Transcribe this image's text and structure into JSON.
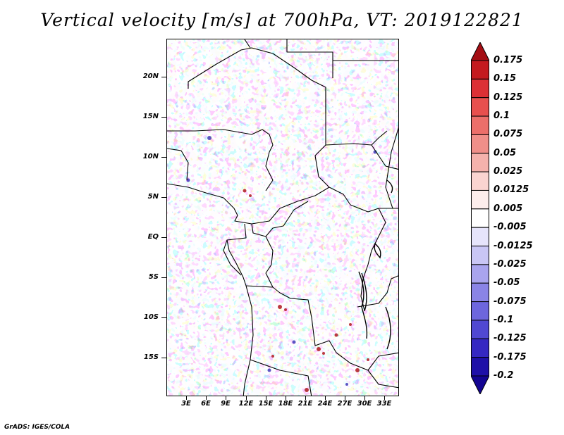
{
  "title": "Vertical velocity [m/s] at 700hPa, VT: 2019122821",
  "credit": "GrADS: IGES/COLA",
  "map": {
    "lat_labels": [
      "20N",
      "15N",
      "10N",
      "5N",
      "EQ",
      "5S",
      "10S",
      "15S"
    ],
    "lon_labels": [
      "3E",
      "6E",
      "9E",
      "12E",
      "15E",
      "18E",
      "21E",
      "24E",
      "27E",
      "30E",
      "33E"
    ]
  },
  "colorbar": {
    "levels": [
      "0.175",
      "0.15",
      "0.125",
      "0.1",
      "0.075",
      "0.05",
      "0.025",
      "0.0125",
      "0.005",
      "-0.005",
      "-0.0125",
      "-0.025",
      "-0.05",
      "-0.075",
      "-0.1",
      "-0.125",
      "-0.175",
      "-0.2"
    ],
    "colors": [
      "#a40e14",
      "#c41a1f",
      "#dc3035",
      "#e8504e",
      "#ec6f6a",
      "#f08f89",
      "#f5b2ac",
      "#fad4d0",
      "#fdeeec",
      "#ffffff",
      "#e6e4fb",
      "#c9c6f5",
      "#a9a4ee",
      "#8a84e6",
      "#6d66dd",
      "#5048d2",
      "#3528c2",
      "#1f10a8",
      "#140592"
    ]
  }
}
